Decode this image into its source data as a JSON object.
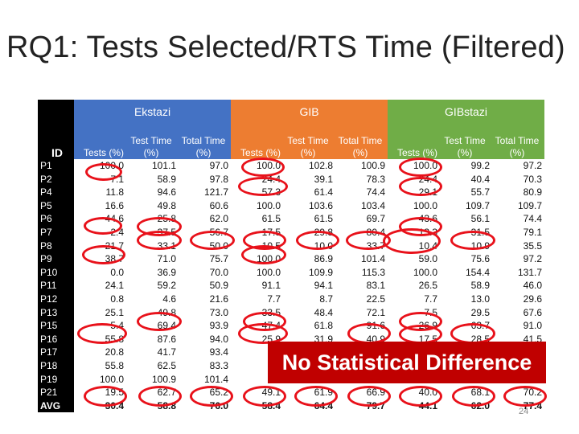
{
  "slide": {
    "title": "RQ1: Tests Selected/RTS Time (Filtered)",
    "page_number": "24",
    "callout": "No Statistical Difference"
  },
  "table": {
    "id_header": "ID",
    "groups": [
      "Ekstazi",
      "GIB",
      "GIBstazi"
    ],
    "subheaders": [
      "Tests (%)",
      "Test Time (%)",
      "Total Time (%)"
    ],
    "group_colors": {
      "Ekstazi": "#4472c4",
      "GIB": "#ed7d31",
      "GIBstazi": "#70ad47"
    },
    "rows": [
      [
        "P1",
        "100.0",
        "101.1",
        "97.0",
        "100.0",
        "102.8",
        "100.9",
        "100.0",
        "99.2",
        "97.2"
      ],
      [
        "P2",
        "7.1",
        "58.9",
        "97.8",
        "24.4",
        "39.1",
        "78.3",
        "24.4",
        "40.4",
        "70.3"
      ],
      [
        "P4",
        "11.8",
        "94.6",
        "121.7",
        "57.3",
        "61.4",
        "74.4",
        "29.1",
        "55.7",
        "80.9"
      ],
      [
        "P5",
        "16.6",
        "49.8",
        "60.6",
        "100.0",
        "103.6",
        "103.4",
        "100.0",
        "109.7",
        "109.7"
      ],
      [
        "P6",
        "44.6",
        "25.8",
        "62.0",
        "61.5",
        "61.5",
        "69.7",
        "43.6",
        "56.1",
        "74.4"
      ],
      [
        "P7",
        "2.4",
        "37.5",
        "56.7",
        "17.5",
        "29.8",
        "80.4",
        "13.3",
        "31.5",
        "79.1"
      ],
      [
        "P8",
        "21.7",
        "33.1",
        "50.0",
        "10.5",
        "10.0",
        "33.7",
        "10.4",
        "10.9",
        "35.5"
      ],
      [
        "P9",
        "38.7",
        "71.0",
        "75.7",
        "100.0",
        "86.9",
        "101.4",
        "59.0",
        "75.6",
        "97.2"
      ],
      [
        "P10",
        "0.0",
        "36.9",
        "70.0",
        "100.0",
        "109.9",
        "115.3",
        "100.0",
        "154.4",
        "131.7"
      ],
      [
        "P11",
        "24.1",
        "59.2",
        "50.9",
        "91.1",
        "94.1",
        "83.1",
        "26.5",
        "58.9",
        "46.0"
      ],
      [
        "P12",
        "0.8",
        "4.6",
        "21.6",
        "7.7",
        "8.7",
        "22.5",
        "7.7",
        "13.0",
        "29.6"
      ],
      [
        "P13",
        "25.1",
        "49.8",
        "73.0",
        "33.5",
        "48.4",
        "72.1",
        "7.5",
        "29.5",
        "67.6"
      ],
      [
        "P15",
        "5.4",
        "69.4",
        "93.9",
        "47.4",
        "61.8",
        "91.6",
        "26.9",
        "63.7",
        "91.0"
      ],
      [
        "P16",
        "55.8",
        "87.6",
        "94.0",
        "25.9",
        "31.9",
        "40.9",
        "17.5",
        "28.5",
        "41.5"
      ],
      [
        "P17",
        "20.8",
        "41.7",
        "93.4",
        "3",
        "",
        "",
        "",
        "",
        ""
      ],
      [
        "P18",
        "55.8",
        "62.5",
        "83.3",
        "10",
        "",
        "",
        "",
        "",
        ""
      ],
      [
        "P19",
        "100.0",
        "100.9",
        "101.4",
        "10",
        "",
        "",
        "",
        "",
        ""
      ],
      [
        "P21",
        "19.5",
        "62.7",
        "65.2",
        "49.1",
        "61.9",
        "66.9",
        "40.0",
        "68.1",
        "70.2"
      ],
      [
        "AVG",
        "30.4",
        "58.8",
        "76.0",
        "58.4",
        "64.4",
        "79.7",
        "44.1",
        "62.0",
        "77.4"
      ]
    ]
  }
}
